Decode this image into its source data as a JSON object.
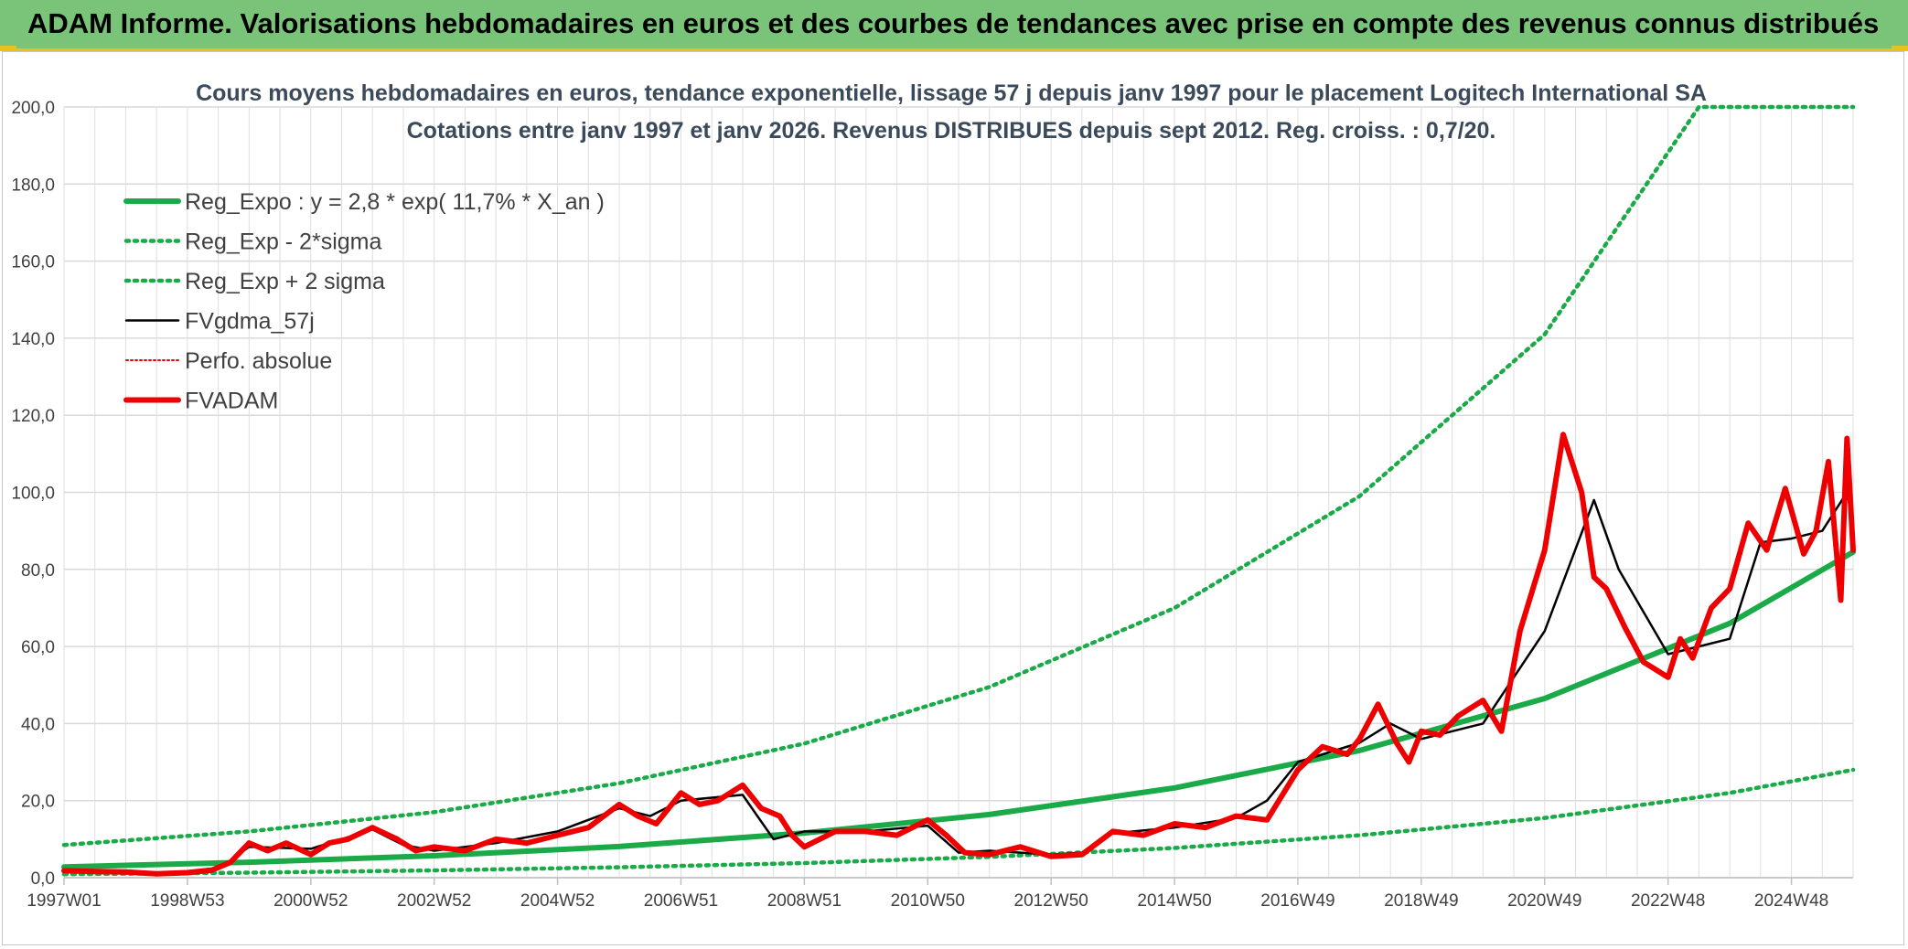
{
  "header": {
    "title": "ADAM Informe. Valorisations hebdomadaires en euros et des courbes de tendances avec prise en compte des revenus connus distribués"
  },
  "chart_data": {
    "type": "line",
    "title_line1": "Cours moyens hebdomadaires en euros, tendance exponentielle, lissage 57 j depuis janv 1997 pour le placement Logitech International SA",
    "title_line2": "Cotations entre janv 1997 et janv 2026. Revenus DISTRIBUES depuis sept 2012. Reg. croiss. : 0,7/20.",
    "ylim": [
      0,
      200
    ],
    "yticks": [
      "0,0",
      "20,0",
      "40,0",
      "60,0",
      "80,0",
      "100,0",
      "120,0",
      "140,0",
      "160,0",
      "180,0",
      "200,0"
    ],
    "xlim": [
      1997.0,
      2026.0
    ],
    "xticks": [
      {
        "label": "1997W01",
        "x": 1997.0
      },
      {
        "label": "1998W53",
        "x": 1999.0
      },
      {
        "label": "2000W52",
        "x": 2001.0
      },
      {
        "label": "2002W52",
        "x": 2003.0
      },
      {
        "label": "2004W52",
        "x": 2005.0
      },
      {
        "label": "2006W51",
        "x": 2007.0
      },
      {
        "label": "2008W51",
        "x": 2009.0
      },
      {
        "label": "2010W50",
        "x": 2011.0
      },
      {
        "label": "2012W50",
        "x": 2013.0
      },
      {
        "label": "2014W50",
        "x": 2015.0
      },
      {
        "label": "2016W49",
        "x": 2017.0
      },
      {
        "label": "2018W49",
        "x": 2019.0
      },
      {
        "label": "2020W49",
        "x": 2021.0
      },
      {
        "label": "2022W48",
        "x": 2023.0
      },
      {
        "label": "2024W48",
        "x": 2025.0
      }
    ],
    "grid": true,
    "legend_position": "top-left",
    "series": [
      {
        "name": "Reg_Expo : y = 2,8 * exp( 11,7% *  X_an )",
        "color": "#1aaa48",
        "style": "solid-thick",
        "x": [
          1997.0,
          2000.0,
          2003.0,
          2006.0,
          2009.0,
          2012.0,
          2015.0,
          2018.0,
          2021.0,
          2024.0,
          2026.0
        ],
        "y": [
          2.8,
          4.0,
          5.7,
          8.1,
          11.6,
          16.4,
          23.3,
          33.0,
          46.5,
          66.0,
          84.5
        ]
      },
      {
        "name": "Reg_Exp - 2*sigma",
        "color": "#1aaa48",
        "style": "dotted",
        "x": [
          1997.0,
          2000.0,
          2003.0,
          2006.0,
          2009.0,
          2012.0,
          2015.0,
          2018.0,
          2021.0,
          2024.0,
          2026.0
        ],
        "y": [
          0.9,
          1.3,
          1.9,
          2.7,
          3.8,
          5.4,
          7.7,
          11.0,
          15.5,
          22.0,
          28.0
        ]
      },
      {
        "name": "Reg_Exp + 2 sigma",
        "color": "#1aaa48",
        "style": "dotted",
        "x": [
          1997.0,
          2000.0,
          2003.0,
          2006.0,
          2009.0,
          2012.0,
          2015.0,
          2018.0,
          2021.0,
          2023.5,
          2024.0,
          2026.0
        ],
        "y": [
          8.5,
          12.0,
          17.0,
          24.5,
          34.8,
          49.5,
          70.0,
          99.0,
          141.0,
          200.0,
          200.0,
          200.0
        ]
      },
      {
        "name": "FVgdma_57j",
        "color": "#000000",
        "style": "solid",
        "x": [
          1997.0,
          1998.0,
          1999.0,
          1999.5,
          2000.0,
          2001.0,
          2002.0,
          2002.5,
          2003.0,
          2004.0,
          2005.0,
          2006.0,
          2006.5,
          2007.0,
          2008.0,
          2008.5,
          2009.0,
          2010.0,
          2011.0,
          2011.5,
          2012.0,
          2013.0,
          2013.5,
          2014.0,
          2015.0,
          2016.0,
          2016.5,
          2017.0,
          2018.0,
          2018.5,
          2019.0,
          2020.0,
          2021.0,
          2021.8,
          2022.2,
          2023.0,
          2023.5,
          2024.0,
          2024.5,
          2025.0,
          2025.5,
          2025.9,
          2026.0
        ],
        "y": [
          1.5,
          1.4,
          1.2,
          2.2,
          8.0,
          7.5,
          12.5,
          8.5,
          7.0,
          9.0,
          12.0,
          18.0,
          16.0,
          20.0,
          21.5,
          10.0,
          12.0,
          12.0,
          13.5,
          6.5,
          7.0,
          6.0,
          6.5,
          11.5,
          13.0,
          15.5,
          20.0,
          30.0,
          35.0,
          40.0,
          36.0,
          40.0,
          64.0,
          98.0,
          80.0,
          58.0,
          60.0,
          62.0,
          87.0,
          88.0,
          90.0,
          100.0,
          92.0
        ]
      },
      {
        "name": "Perfo. absolue",
        "color": "#ee0000",
        "style": "dotted-thin",
        "x": [],
        "y": []
      },
      {
        "name": "FVADAM",
        "color": "#ee0000",
        "style": "solid-thick",
        "x": [
          1997.0,
          1997.5,
          1998.0,
          1998.5,
          1999.0,
          1999.4,
          1999.7,
          2000.0,
          2000.3,
          2000.6,
          2001.0,
          2001.3,
          2001.6,
          2002.0,
          2002.4,
          2002.7,
          2003.0,
          2003.5,
          2004.0,
          2004.5,
          2005.0,
          2005.5,
          2006.0,
          2006.3,
          2006.6,
          2007.0,
          2007.3,
          2007.6,
          2008.0,
          2008.3,
          2008.6,
          2008.8,
          2009.0,
          2009.5,
          2010.0,
          2010.5,
          2011.0,
          2011.3,
          2011.6,
          2012.0,
          2012.5,
          2013.0,
          2013.5,
          2014.0,
          2014.5,
          2015.0,
          2015.5,
          2016.0,
          2016.5,
          2017.0,
          2017.4,
          2017.8,
          2018.0,
          2018.3,
          2018.6,
          2018.8,
          2019.0,
          2019.3,
          2019.6,
          2020.0,
          2020.3,
          2020.6,
          2021.0,
          2021.3,
          2021.6,
          2021.8,
          2022.0,
          2022.3,
          2022.6,
          2023.0,
          2023.2,
          2023.4,
          2023.7,
          2024.0,
          2024.3,
          2024.6,
          2024.9,
          2025.2,
          2025.4,
          2025.6,
          2025.8,
          2025.9,
          2026.0
        ],
        "y": [
          1.8,
          1.6,
          1.5,
          1.0,
          1.3,
          2.0,
          4.0,
          9.0,
          7.0,
          9.0,
          6.0,
          9.0,
          10.0,
          13.0,
          10.0,
          7.0,
          8.0,
          7.0,
          10.0,
          9.0,
          11.0,
          13.0,
          19.0,
          16.0,
          14.0,
          22.0,
          19.0,
          20.0,
          24.0,
          18.0,
          16.0,
          11.0,
          8.0,
          12.0,
          12.0,
          11.0,
          15.0,
          11.0,
          6.5,
          6.0,
          8.0,
          5.5,
          6.0,
          12.0,
          11.0,
          14.0,
          13.0,
          16.0,
          15.0,
          28.0,
          34.0,
          32.0,
          36.0,
          45.0,
          35.0,
          30.0,
          38.0,
          37.0,
          42.0,
          46.0,
          38.0,
          64.0,
          85.0,
          115.0,
          100.0,
          78.0,
          75.0,
          65.0,
          56.0,
          52.0,
          62.0,
          57.0,
          70.0,
          75.0,
          92.0,
          85.0,
          101.0,
          84.0,
          90.0,
          108.0,
          72.0,
          114.0,
          85.0
        ]
      }
    ]
  }
}
